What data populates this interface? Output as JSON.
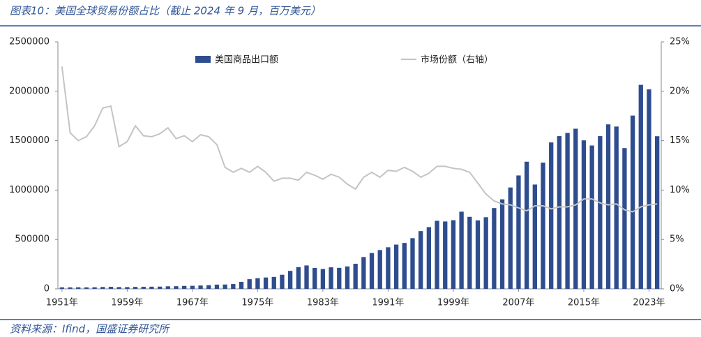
{
  "chart_data": {
    "type": "bar-line",
    "title": "图表10：美国全球贸易份额占比（截止 2024 年 9 月，百万美元）",
    "source": "资料来源：Ifind，国盛证券研究所",
    "categories": [
      "1951年",
      null,
      null,
      null,
      null,
      null,
      null,
      null,
      "1959年",
      null,
      null,
      null,
      null,
      null,
      null,
      null,
      "1967年",
      null,
      null,
      null,
      null,
      null,
      null,
      null,
      "1975年",
      null,
      null,
      null,
      null,
      null,
      null,
      null,
      "1983年",
      null,
      null,
      null,
      null,
      null,
      null,
      null,
      "1991年",
      null,
      null,
      null,
      null,
      null,
      null,
      null,
      "1999年",
      null,
      null,
      null,
      null,
      null,
      null,
      null,
      "2007年",
      null,
      null,
      null,
      null,
      null,
      null,
      null,
      "2015年",
      null,
      null,
      null,
      null,
      null,
      null,
      null,
      "2023年",
      null
    ],
    "series": [
      {
        "name": "美国商品出口额",
        "type": "bar",
        "color": "#2e4d8e",
        "values": [
          15000,
          15000,
          16000,
          15000,
          16000,
          19000,
          21000,
          18000,
          18000,
          20000,
          21000,
          22000,
          23000,
          26000,
          27000,
          30000,
          31000,
          34000,
          37000,
          43000,
          44000,
          49000,
          71000,
          98000,
          108000,
          115000,
          121000,
          143000,
          182000,
          220000,
          237000,
          212000,
          201000,
          218000,
          213000,
          227000,
          254000,
          322000,
          363000,
          393000,
          421000,
          448000,
          465000,
          513000,
          585000,
          625000,
          689000,
          682000,
          695000,
          781000,
          729000,
          693000,
          725000,
          818000,
          906000,
          1026000,
          1148000,
          1287000,
          1056000,
          1278000,
          1482000,
          1546000,
          1578000,
          1621000,
          1503000,
          1451000,
          1546000,
          1665000,
          1643000,
          1425000,
          1754000,
          2065000,
          2019000,
          1545000
        ]
      },
      {
        "name": "市场份额（右轴）",
        "type": "line",
        "axis": "y2",
        "color": "#c4c4c4",
        "values": [
          22.5,
          15.8,
          15.0,
          15.4,
          16.5,
          18.3,
          18.5,
          14.4,
          14.9,
          16.5,
          15.5,
          15.4,
          15.7,
          16.3,
          15.2,
          15.5,
          14.9,
          15.6,
          15.4,
          14.6,
          12.3,
          11.8,
          12.2,
          11.8,
          12.4,
          11.8,
          10.9,
          11.2,
          11.2,
          11.0,
          11.8,
          11.5,
          11.1,
          11.6,
          11.3,
          10.6,
          10.1,
          11.3,
          11.8,
          11.3,
          12.0,
          11.9,
          12.3,
          11.9,
          11.3,
          11.7,
          12.4,
          12.4,
          12.2,
          12.1,
          11.8,
          10.7,
          9.6,
          8.9,
          8.6,
          8.5,
          8.2,
          7.9,
          8.4,
          8.4,
          8.1,
          8.3,
          8.3,
          8.5,
          9.1,
          9.1,
          8.7,
          8.5,
          8.6,
          8.0,
          7.8,
          8.3,
          8.5,
          8.6
        ]
      }
    ],
    "ylim": [
      0,
      2500000
    ],
    "yticks": [
      0,
      500000,
      1000000,
      1500000,
      2000000,
      2500000
    ],
    "y2lim": [
      0,
      25
    ],
    "y2ticks": [
      {
        "value": 0,
        "label": "0%"
      },
      {
        "value": 5,
        "label": "5%"
      },
      {
        "value": 10,
        "label": "10%"
      },
      {
        "value": 15,
        "label": "15%"
      },
      {
        "value": 20,
        "label": "20%"
      },
      {
        "value": 25,
        "label": "25%"
      }
    ]
  }
}
